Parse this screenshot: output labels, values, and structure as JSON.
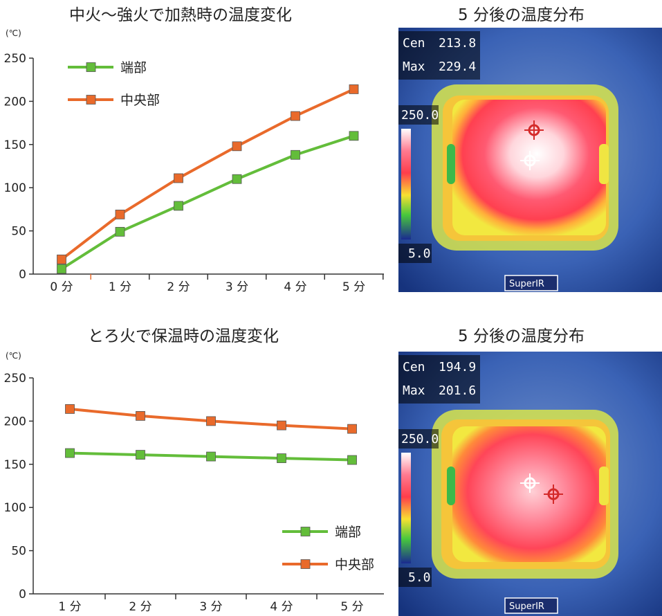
{
  "chart_data": [
    {
      "type": "line",
      "title": "中火～強火で加熱時の温度変化",
      "unit_label": "(℃)",
      "ylim": [
        0,
        250
      ],
      "yticks": [
        "0",
        "50",
        "100",
        "150",
        "200",
        "250"
      ],
      "categories": [
        "0 分",
        "1 分",
        "2 分",
        "3 分",
        "4 分",
        "5 分"
      ],
      "series": [
        {
          "name": "端部",
          "color": "#63bd3a",
          "values": [
            6,
            49,
            79,
            110,
            138,
            160
          ]
        },
        {
          "name": "中央部",
          "color": "#e96a2b",
          "values": [
            17,
            69,
            111,
            148,
            183,
            214
          ]
        }
      ],
      "legend_position": "top-left"
    },
    {
      "type": "line",
      "title": "とろ火で保温時の温度変化",
      "unit_label": "(℃)",
      "ylim": [
        0,
        250
      ],
      "yticks": [
        "0",
        "50",
        "100",
        "150",
        "200",
        "250"
      ],
      "categories": [
        "1 分",
        "2 分",
        "3 分",
        "4 分",
        "5 分"
      ],
      "series": [
        {
          "name": "端部",
          "color": "#63bd3a",
          "values": [
            163,
            161,
            159,
            157,
            155
          ]
        },
        {
          "name": "中央部",
          "color": "#e96a2b",
          "values": [
            214,
            206,
            200,
            195,
            191
          ]
        }
      ],
      "legend_position": "bottom-right"
    }
  ],
  "thermal": [
    {
      "title": "5 分後の温度分布",
      "cen_label": "Cen",
      "cen_value": "213.8",
      "max_label": "Max",
      "max_value": "229.4",
      "scale_max": "250.0",
      "scale_min": "5.0",
      "brand": "SuperIR"
    },
    {
      "title": "5 分後の温度分布",
      "cen_label": "Cen",
      "cen_value": "194.9",
      "max_label": "Max",
      "max_value": "201.6",
      "scale_max": "250.0",
      "scale_min": "5.0",
      "brand": "SuperIR"
    }
  ]
}
